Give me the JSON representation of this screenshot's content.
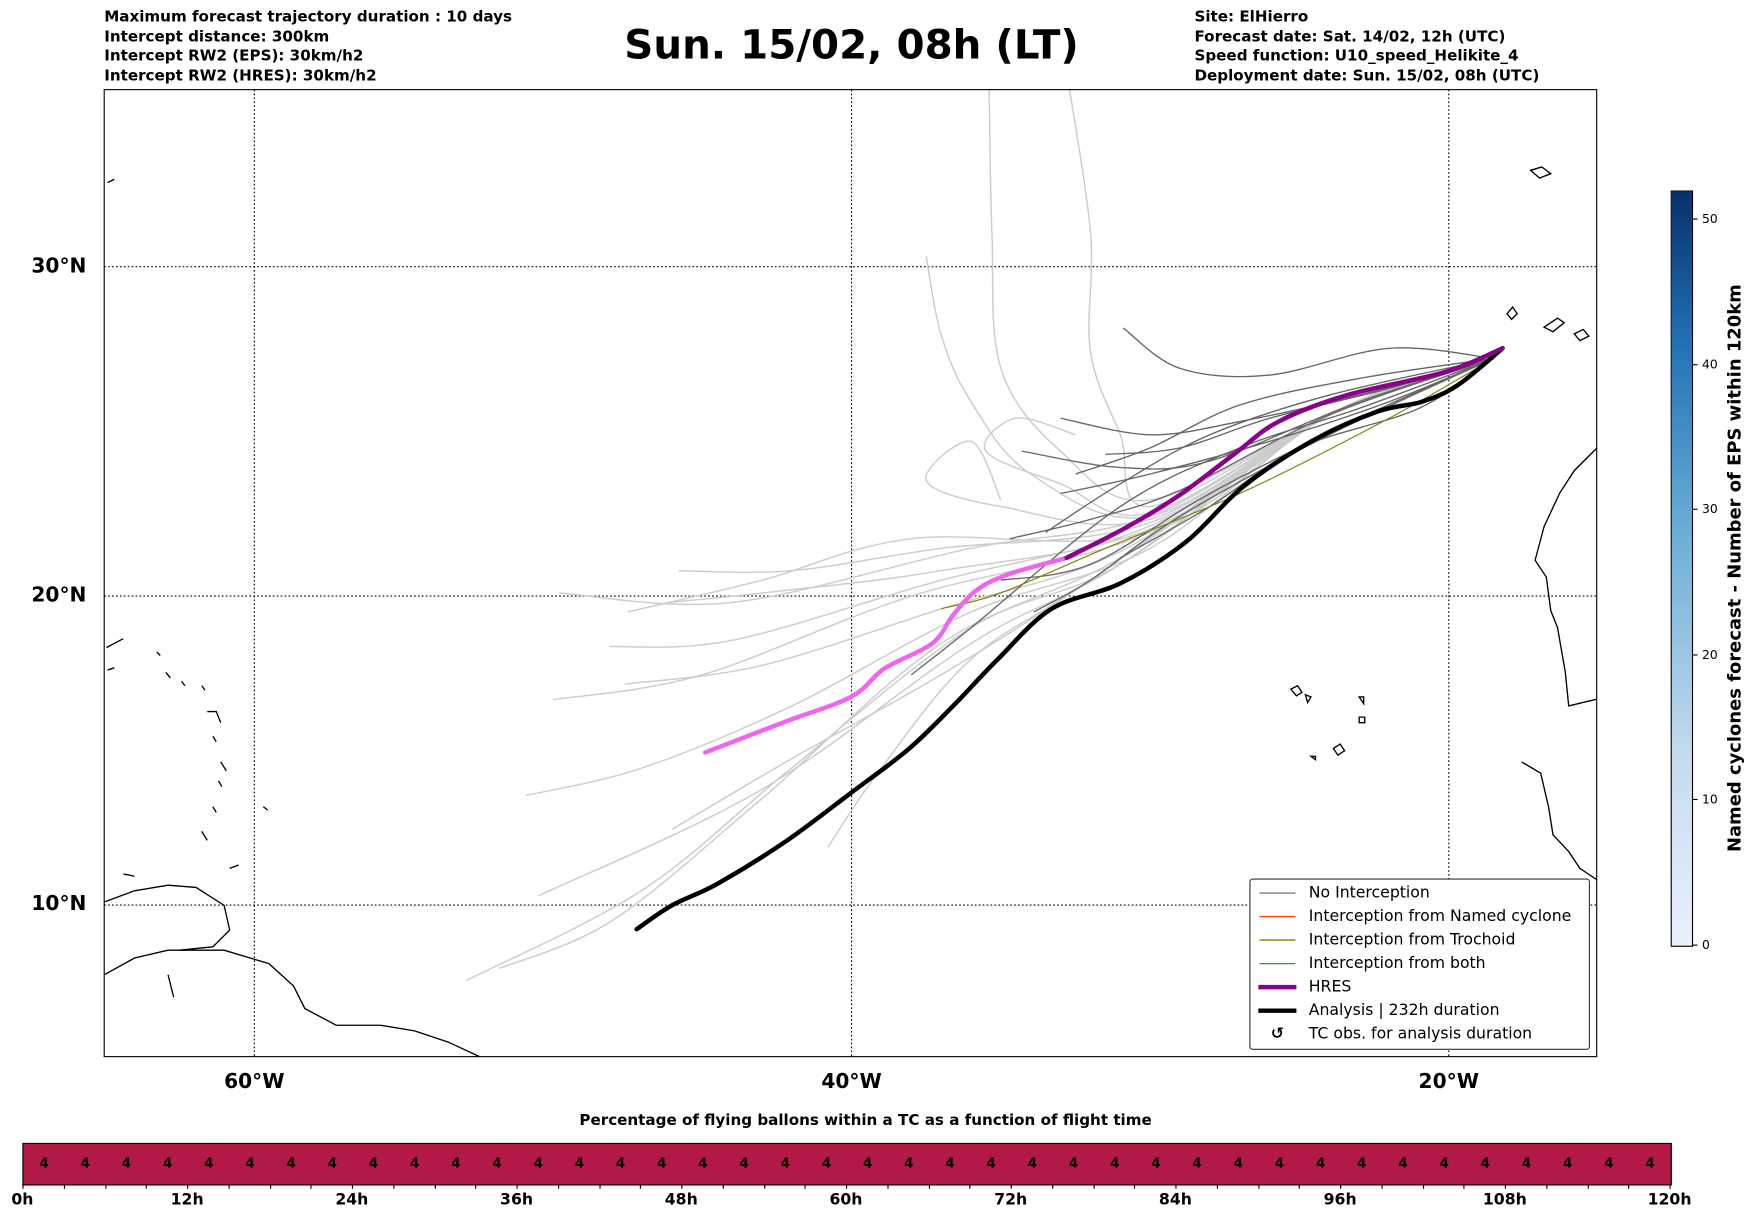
{
  "header": {
    "left": [
      "Maximum forecast trajectory duration : 10 days",
      "Intercept distance: 300km",
      "Intercept RW2 (EPS):  30km/h2",
      "Intercept RW2 (HRES): 30km/h2"
    ],
    "title": "Sun. 15/02, 08h (LT)",
    "right": [
      "Site: ElHierro",
      "Forecast date: Sat. 14/02, 12h (UTC)",
      "Speed function: U10_speed_Helikite_4",
      "Deployment date: Sun. 15/02, 08h (UTC)"
    ]
  },
  "map": {
    "lat_labels": [
      "30°N",
      "20°N",
      "10°N"
    ],
    "lon_labels": [
      "60°W",
      "40°W",
      "20°W"
    ],
    "legend": [
      {
        "label": "No Interception",
        "color": "#7f7f7f"
      },
      {
        "label": "Interception from Named cyclone",
        "color": "#ff4500"
      },
      {
        "label": "Interception from Trochoid",
        "color": "#808000"
      },
      {
        "label": "Interception from both",
        "color": "#2ca02c"
      },
      {
        "label": "HRES",
        "color": "#8b008b"
      },
      {
        "label": "Analysis | 232h duration",
        "color": "#000000"
      },
      {
        "label": "TC obs. for analysis duration",
        "symbol": "↺"
      }
    ],
    "colorbar": {
      "label": "Named cyclones forecast - Number of EPS within 120km",
      "ticks": [
        "0",
        "10",
        "20",
        "30",
        "40",
        "50"
      ],
      "range": [
        0,
        52
      ]
    }
  },
  "chart_data": {
    "type": "line",
    "extent": {
      "lon": [
        -65,
        -15
      ],
      "lat": [
        5,
        35.5
      ]
    },
    "hres": [
      [
        -18.2,
        27.6
      ],
      [
        -20.1,
        26.9
      ],
      [
        -23.4,
        26.2
      ],
      [
        -25.7,
        25.4
      ],
      [
        -27.2,
        24.4
      ],
      [
        -29.1,
        23.1
      ],
      [
        -30.9,
        22.1
      ],
      [
        -32.8,
        21.2
      ]
    ],
    "hres_late": [
      [
        -32.8,
        21.2
      ],
      [
        -34.7,
        20.7
      ],
      [
        -35.8,
        20.2
      ],
      [
        -36.6,
        19.4
      ],
      [
        -37.3,
        18.5
      ],
      [
        -38.9,
        17.7
      ],
      [
        -40,
        16.8
      ],
      [
        -42.2,
        16.0
      ],
      [
        -44.9,
        15.0
      ]
    ],
    "analysis": [
      [
        -18.2,
        27.6
      ],
      [
        -19.7,
        26.5
      ],
      [
        -20.9,
        26.0
      ],
      [
        -22.4,
        25.7
      ],
      [
        -24.6,
        24.8
      ],
      [
        -26.9,
        23.4
      ],
      [
        -28.8,
        21.7
      ],
      [
        -31,
        20.4
      ],
      [
        -33.3,
        19.6
      ],
      [
        -35.1,
        18.0
      ],
      [
        -36.6,
        16.5
      ],
      [
        -38.1,
        15.1
      ],
      [
        -40,
        13.7
      ],
      [
        -42.2,
        12.1
      ],
      [
        -44.5,
        10.7
      ],
      [
        -46,
        10.0
      ],
      [
        -47.2,
        9.2
      ]
    ],
    "trochoid": [
      [
        -18.5,
        27.3
      ],
      [
        -22,
        25.5
      ],
      [
        -27,
        23.2
      ],
      [
        -31.5,
        21.5
      ],
      [
        -35,
        20.1
      ],
      [
        -37,
        19.6
      ]
    ],
    "eps_dark": [
      [
        [
          -18.5,
          27.3
        ],
        [
          -22,
          27.6
        ],
        [
          -26,
          26.8
        ],
        [
          -29,
          27.0
        ],
        [
          -30.9,
          28.2
        ]
      ],
      [
        [
          -18.5,
          27.3
        ],
        [
          -23,
          26.2
        ],
        [
          -27,
          25.4
        ],
        [
          -30,
          25.0
        ],
        [
          -33.0,
          25.5
        ]
      ],
      [
        [
          -18.5,
          27.3
        ],
        [
          -23,
          26.0
        ],
        [
          -28,
          24.2
        ],
        [
          -31,
          24.0
        ],
        [
          -34.3,
          24.5
        ]
      ],
      [
        [
          -18.5,
          27.3
        ],
        [
          -24,
          25.6
        ],
        [
          -29,
          23.3
        ],
        [
          -32,
          22.4
        ],
        [
          -34.7,
          21.8
        ]
      ],
      [
        [
          -18.5,
          27.3
        ],
        [
          -23,
          25.5
        ],
        [
          -28,
          23.2
        ],
        [
          -32,
          21.0
        ],
        [
          -35.0,
          20.5
        ]
      ],
      [
        [
          -18.5,
          27.3
        ],
        [
          -24,
          25.0
        ],
        [
          -29,
          22.5
        ],
        [
          -32,
          20.5
        ],
        [
          -33.9,
          19.5
        ]
      ],
      [
        [
          -18.5,
          27.3
        ],
        [
          -22,
          26.0
        ],
        [
          -26,
          24.8
        ],
        [
          -30,
          23.8
        ],
        [
          -33.0,
          23.2
        ]
      ],
      [
        [
          -18.5,
          27.3
        ],
        [
          -23,
          25.8
        ],
        [
          -27,
          24.6
        ],
        [
          -31,
          22.8
        ],
        [
          -36,
          19.0
        ],
        [
          -38,
          17.5
        ]
      ],
      [
        [
          -18.5,
          27.3
        ],
        [
          -24,
          26.2
        ],
        [
          -28,
          25.0
        ],
        [
          -31,
          23.5
        ],
        [
          -33.5,
          22.0
        ]
      ],
      [
        [
          -18.5,
          27.3
        ],
        [
          -22,
          26.4
        ],
        [
          -26,
          25.5
        ],
        [
          -29,
          24.6
        ],
        [
          -31.5,
          24.4
        ]
      ],
      [
        [
          -18.5,
          27.3
        ],
        [
          -21,
          25.8
        ],
        [
          -25,
          24.6
        ],
        [
          -28,
          22.8
        ],
        [
          -31,
          21.2
        ]
      ],
      [
        [
          -18.5,
          27.3
        ],
        [
          -23,
          26.7
        ],
        [
          -27,
          25.9
        ],
        [
          -30,
          24.6
        ],
        [
          -32.5,
          23.8
        ]
      ]
    ],
    "eps_light": [
      [
        [
          -30,
          22.5
        ],
        [
          -36,
          21.5
        ],
        [
          -44,
          19.8
        ],
        [
          -49.8,
          20.1
        ]
      ],
      [
        [
          -30,
          22.2
        ],
        [
          -37,
          20.5
        ],
        [
          -44,
          18.6
        ],
        [
          -48.1,
          18.4
        ]
      ],
      [
        [
          -30,
          22.0
        ],
        [
          -38,
          20.0
        ],
        [
          -45,
          17.5
        ],
        [
          -50.0,
          16.7
        ]
      ],
      [
        [
          -30,
          22.3
        ],
        [
          -37,
          21.5
        ],
        [
          -42,
          20.8
        ],
        [
          -45.8,
          20.8
        ]
      ],
      [
        [
          -30,
          22.1
        ],
        [
          -37,
          20.8
        ],
        [
          -42,
          20.2
        ],
        [
          -46.1,
          19.8
        ]
      ],
      [
        [
          -30,
          21.5
        ],
        [
          -36,
          19.5
        ],
        [
          -42,
          16.5
        ],
        [
          -47,
          14.5
        ],
        [
          -50.9,
          13.6
        ]
      ],
      [
        [
          -31,
          21.0
        ],
        [
          -36,
          19.0
        ],
        [
          -42,
          14.5
        ],
        [
          -47,
          10.5
        ],
        [
          -52.9,
          7.5
        ]
      ],
      [
        [
          -31,
          21.2
        ],
        [
          -37,
          18.5
        ],
        [
          -43,
          13.5
        ],
        [
          -48,
          9.5
        ],
        [
          -51.8,
          7.9
        ]
      ],
      [
        [
          -31,
          21.0
        ],
        [
          -36,
          18.5
        ],
        [
          -43,
          13.8
        ],
        [
          -50.5,
          10.3
        ]
      ],
      [
        [
          -32,
          20.5
        ],
        [
          -36,
          18.0
        ],
        [
          -39,
          14.5
        ],
        [
          -40.8,
          11.9
        ]
      ],
      [
        [
          -30,
          22.5
        ],
        [
          -34,
          23.8
        ],
        [
          -36,
          26.0
        ],
        [
          -37,
          28.0
        ],
        [
          -37.5,
          30.3
        ]
      ],
      [
        [
          -30,
          23.0
        ],
        [
          -33,
          24.5
        ],
        [
          -35,
          27.0
        ],
        [
          -35.3,
          31.0
        ],
        [
          -35.4,
          35.5
        ]
      ],
      [
        [
          -30,
          22.8
        ],
        [
          -31,
          25.0
        ],
        [
          -32,
          27.5
        ],
        [
          -32,
          31.0
        ],
        [
          -32.8,
          35.5
        ]
      ],
      [
        [
          -30,
          22.6
        ],
        [
          -33,
          23.5
        ],
        [
          -35.5,
          24.5
        ],
        [
          -34.5,
          25.5
        ],
        [
          -32.5,
          25.0
        ]
      ],
      [
        [
          -30,
          22.4
        ],
        [
          -35,
          22.8
        ],
        [
          -37.5,
          23.6
        ],
        [
          -36,
          24.8
        ],
        [
          -35,
          23.0
        ]
      ],
      [
        [
          -30,
          22.0
        ],
        [
          -38,
          21.8
        ],
        [
          -43,
          20.5
        ],
        [
          -47.5,
          19.5
        ]
      ],
      [
        [
          -31,
          21.4
        ],
        [
          -37,
          19.6
        ],
        [
          -43,
          17.8
        ],
        [
          -47.6,
          17.2
        ]
      ],
      [
        [
          -32,
          20.5
        ],
        [
          -37,
          17.5
        ],
        [
          -42,
          14.8
        ],
        [
          -46,
          12.5
        ]
      ]
    ]
  },
  "bottom": {
    "title": "Percentage of flying ballons within a TC as a function of flight time",
    "values": [
      "4",
      "4",
      "4",
      "4",
      "4",
      "4",
      "4",
      "4",
      "4",
      "4",
      "4",
      "4",
      "4",
      "4",
      "4",
      "4",
      "4",
      "4",
      "4",
      "4",
      "4",
      "4",
      "4",
      "4",
      "4",
      "4",
      "4",
      "4",
      "4",
      "4",
      "4",
      "4",
      "4",
      "4",
      "4",
      "4",
      "4",
      "4",
      "4",
      "4"
    ],
    "xticks": [
      "0h",
      "12h",
      "24h",
      "36h",
      "48h",
      "60h",
      "72h",
      "84h",
      "96h",
      "108h",
      "120h"
    ]
  }
}
